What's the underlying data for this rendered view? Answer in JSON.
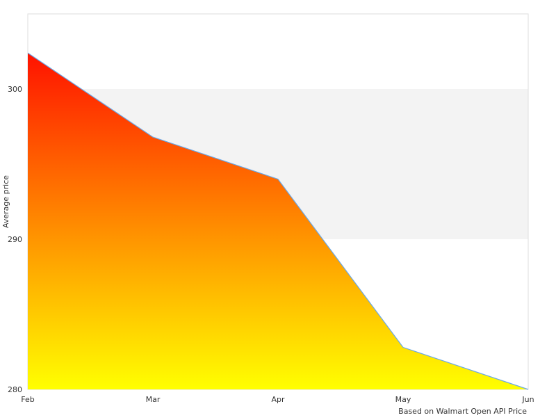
{
  "chart_data": {
    "type": "area",
    "categories": [
      "Feb",
      "Mar",
      "Apr",
      "May",
      "Jun"
    ],
    "values": [
      302.4,
      296.8,
      294.0,
      282.8,
      280.0
    ],
    "ylabel": "Average price",
    "xlabel": "Based on Walmart Open API Price",
    "ylim": [
      280,
      305
    ],
    "yticks": [
      280,
      290,
      300
    ],
    "grid": "alternating horizontal bands",
    "colors": {
      "fill_top": "#ff1200",
      "fill_bottom": "#ffff00",
      "line": "#6aa8e8",
      "band": "#f3f3f3",
      "border": "#dddddd"
    }
  }
}
